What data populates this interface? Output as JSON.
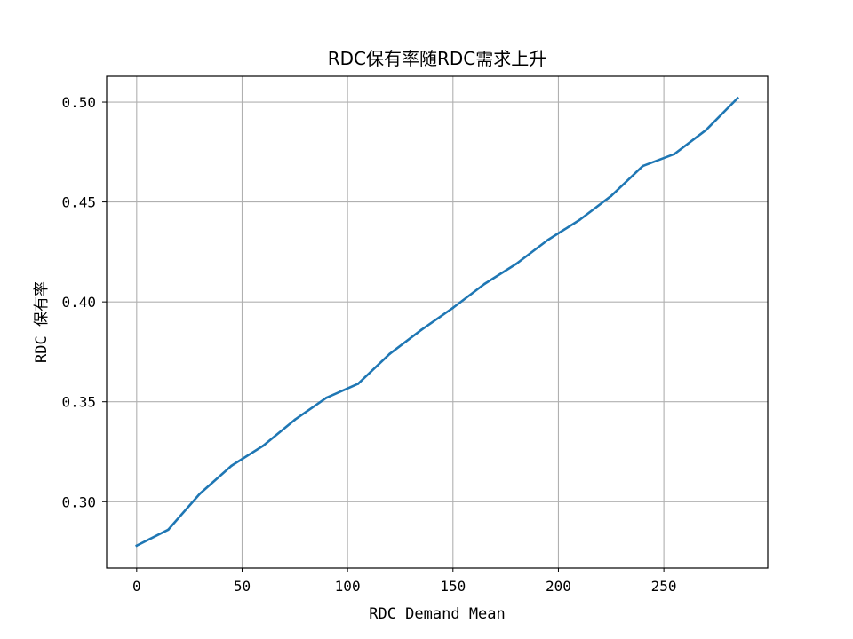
{
  "chart_data": {
    "type": "line",
    "title": "RDC保有率随RDC需求上升",
    "xlabel": "RDC Demand Mean",
    "ylabel": "RDC 保有率",
    "xlim": [
      -14.25,
      299.25
    ],
    "ylim": [
      0.2668,
      0.5129
    ],
    "xticks": [
      0,
      50,
      100,
      150,
      200,
      250
    ],
    "xtick_labels": [
      "0",
      "50",
      "100",
      "150",
      "200",
      "250"
    ],
    "yticks": [
      0.3,
      0.35,
      0.4,
      0.45,
      0.5
    ],
    "ytick_labels": [
      "0.30",
      "0.35",
      "0.40",
      "0.45",
      "0.50"
    ],
    "grid": true,
    "legend": "none",
    "line_color": "#1f77b4",
    "series": [
      {
        "x": [
          0,
          15,
          30,
          45,
          60,
          75,
          90,
          105,
          120,
          135,
          150,
          165,
          180,
          195,
          210,
          225,
          240,
          255,
          270,
          285
        ],
        "values": [
          0.278,
          0.286,
          0.304,
          0.318,
          0.328,
          0.341,
          0.352,
          0.359,
          0.374,
          0.386,
          0.397,
          0.409,
          0.419,
          0.431,
          0.441,
          0.453,
          0.468,
          0.474,
          0.486,
          0.502
        ]
      }
    ]
  }
}
